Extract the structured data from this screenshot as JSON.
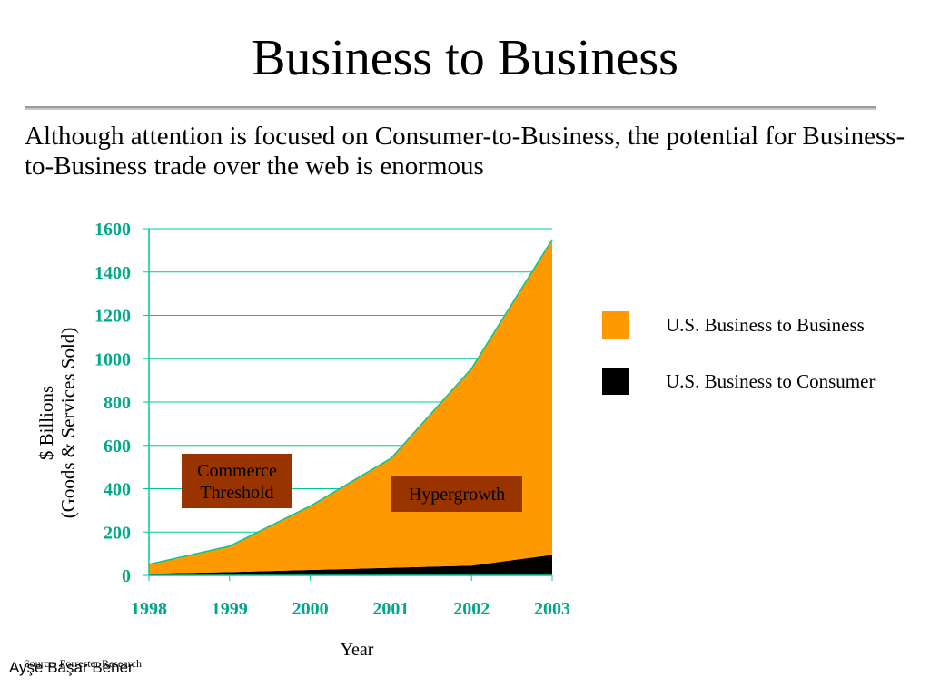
{
  "slide": {
    "title": "Business to Business",
    "subtitle": "Although attention is focused on Consumer-to-Business, the potential for Business-to-Business trade over the web is enormous",
    "source": "Source: Forrester Research",
    "author": "Ayşe Başar Bener"
  },
  "chart_data": {
    "type": "area",
    "stacked": true,
    "x": [
      "1998",
      "1999",
      "2000",
      "2001",
      "2002",
      "2003"
    ],
    "series": [
      {
        "name": "U.S. Business to Consumer",
        "values": [
          8,
          15,
          25,
          35,
          45,
          95
        ],
        "color": "#000000"
      },
      {
        "name": "U.S. Business to Business",
        "values": [
          43,
          120,
          295,
          505,
          910,
          1455
        ],
        "color": "#ff9900"
      }
    ],
    "xlabel": "Year",
    "ylabel": [
      "$ Billions",
      "(Goods & Services Sold)"
    ],
    "ylim": [
      0,
      1600
    ],
    "yticks": [
      0,
      200,
      400,
      600,
      800,
      1000,
      1200,
      1400,
      1600
    ],
    "grid": true,
    "legend_position": "right",
    "axis_color": "#00c896",
    "annotations": [
      {
        "lines": [
          "Commerce",
          "Threshold"
        ],
        "color": "#993300"
      },
      {
        "lines": [
          "Hypergrowth"
        ],
        "color": "#993300"
      }
    ]
  }
}
